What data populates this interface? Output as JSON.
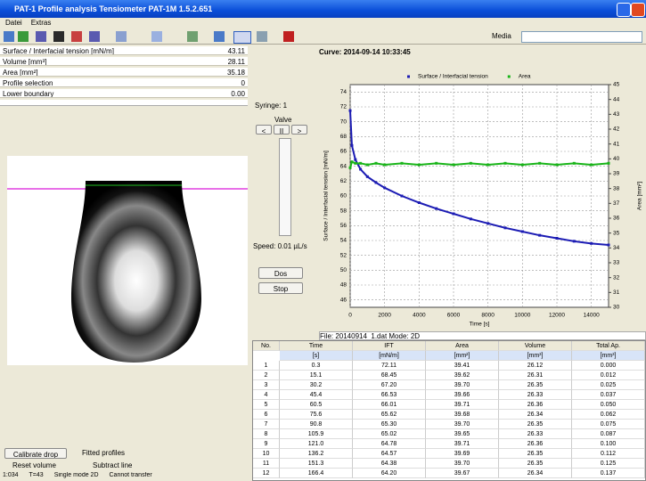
{
  "window": {
    "title": "PAT-1 Profile analysis Tensiometer PAT-1M 1.5.2.651"
  },
  "menu": [
    "Datei",
    "Extras"
  ],
  "toolbar": {
    "media_label": "Media"
  },
  "properties": [
    {
      "label": "Surface / Interfacial tension [mN/m]",
      "value": "43.11"
    },
    {
      "label": "Volume [mm³]",
      "value": "28.11"
    },
    {
      "label": "Area [mm²]",
      "value": "35.18"
    },
    {
      "label": "Profile selection",
      "value": "0"
    },
    {
      "label": "Lower boundary",
      "value": "0.00"
    }
  ],
  "controls": {
    "syringe": "Syringe: 1",
    "valve": "Valve",
    "valve_buttons": [
      "<",
      "II",
      ">"
    ],
    "speed": "Speed: 0.01 µL/s",
    "buttons": [
      "Dos",
      "Stop"
    ]
  },
  "bottom": {
    "calibrate": "Calibrate drop",
    "fitted": "Fitted profiles",
    "reset": "Reset volume",
    "subtract": "Subtract line"
  },
  "status": [
    "1:034",
    "T=43",
    "Single mode 2D",
    "Cannot transfer"
  ],
  "chart_header": "Curve: 2014-09-14 10:33:45",
  "file_bar": "File: 20140914_1.dat  Mode: 2D",
  "chart_data": {
    "type": "line",
    "x_label": "Time [s]",
    "y_label": "Surface / Interfacial tension [mN/m]",
    "y2_label": "Area [mm²]",
    "x": [
      0,
      100,
      300,
      600,
      1000,
      1500,
      2000,
      3000,
      4000,
      5000,
      6000,
      7000,
      8000,
      9000,
      10000,
      11000,
      12000,
      13000,
      14000,
      15000
    ],
    "series": [
      {
        "name": "Surface / Interfacial tension",
        "color": "#1c1cb4",
        "values": [
          71.5,
          66.8,
          64.9,
          63.6,
          62.6,
          61.8,
          61.1,
          60.0,
          59.1,
          58.3,
          57.6,
          56.9,
          56.3,
          55.7,
          55.2,
          54.7,
          54.3,
          53.9,
          53.6,
          53.4
        ]
      },
      {
        "name": "Area",
        "color": "#18b418",
        "axis": "y2",
        "values": [
          39.4,
          39.8,
          39.7,
          39.7,
          39.6,
          39.7,
          39.6,
          39.7,
          39.6,
          39.7,
          39.6,
          39.7,
          39.6,
          39.7,
          39.6,
          39.7,
          39.6,
          39.7,
          39.6,
          39.7
        ]
      }
    ],
    "xlim": [
      0,
      15000
    ],
    "xticks": [
      0,
      2000,
      4000,
      6000,
      8000,
      10000,
      12000,
      14000
    ],
    "ylim": [
      45,
      75
    ],
    "yticks": [
      46,
      48,
      50,
      52,
      54,
      56,
      58,
      60,
      62,
      64,
      66,
      68,
      70,
      72,
      74
    ],
    "y2lim": [
      30,
      45
    ],
    "y2ticks": [
      30,
      31,
      32,
      33,
      34,
      35,
      36,
      37,
      38,
      39,
      40,
      41,
      42,
      43,
      44,
      45
    ],
    "grid": true,
    "legend": "top"
  },
  "table": {
    "columns": [
      "No.",
      "Time",
      "IFT",
      "Area",
      "Volume",
      "Total Ap."
    ],
    "units": [
      "[s]",
      "[mN/m]",
      "[mm²]",
      "[mm³]",
      "[mm³]"
    ],
    "rows": [
      [
        "1",
        "0.3",
        "72.11",
        "39.41",
        "26.12",
        "0.000"
      ],
      [
        "2",
        "15.1",
        "68.45",
        "39.62",
        "26.31",
        "0.012"
      ],
      [
        "3",
        "30.2",
        "67.20",
        "39.70",
        "26.35",
        "0.025"
      ],
      [
        "4",
        "45.4",
        "66.53",
        "39.66",
        "26.33",
        "0.037"
      ],
      [
        "5",
        "60.5",
        "66.01",
        "39.71",
        "26.36",
        "0.050"
      ],
      [
        "6",
        "75.6",
        "65.62",
        "39.68",
        "26.34",
        "0.062"
      ],
      [
        "7",
        "90.8",
        "65.30",
        "39.70",
        "26.35",
        "0.075"
      ],
      [
        "8",
        "105.9",
        "65.02",
        "39.65",
        "26.33",
        "0.087"
      ],
      [
        "9",
        "121.0",
        "64.78",
        "39.71",
        "26.36",
        "0.100"
      ],
      [
        "10",
        "136.2",
        "64.57",
        "39.69",
        "26.35",
        "0.112"
      ],
      [
        "11",
        "151.3",
        "64.38",
        "39.70",
        "26.35",
        "0.125"
      ],
      [
        "12",
        "166.4",
        "64.20",
        "39.67",
        "26.34",
        "0.137"
      ]
    ]
  }
}
